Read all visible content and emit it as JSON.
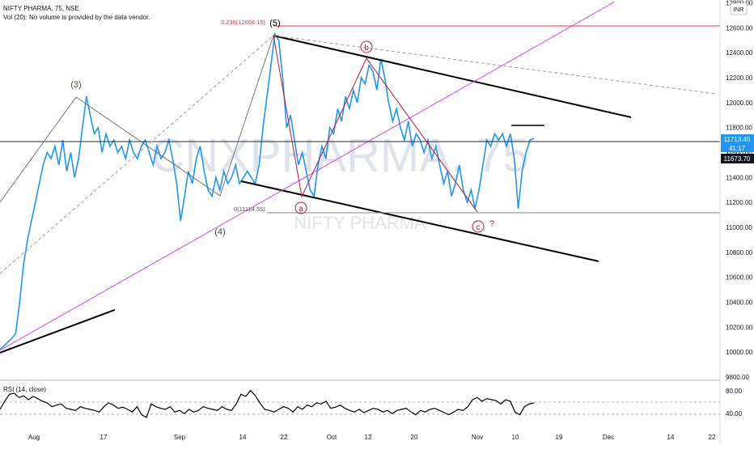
{
  "header": {
    "symbol": "NIFTY PHARMA, 75, NSE",
    "volume_note": "Vol (20): No volume is provided by the data vendor."
  },
  "watermark": {
    "big": "CNXPHARMA, 75",
    "small": "NIFTY PHARMA"
  },
  "currency": "INR",
  "price_tags": {
    "current": "11713.45",
    "countdown": "41:17",
    "secondary": "11673.70",
    "partial": "11"
  },
  "fib_labels": {
    "upper": "0.236(12608.15)",
    "lower": "0(11114.55)"
  },
  "wave_labels": {
    "w3": "(3)",
    "w4": "(4)",
    "w5": "(5)",
    "a": "a",
    "b": "b",
    "c": "c",
    "question": "?"
  },
  "rsi": {
    "label": "RSI (14, close)",
    "ticks": [
      "80.00",
      "40.00"
    ]
  },
  "colors": {
    "price": "#2196F3",
    "trendline": "#000000",
    "fib": "#F23645",
    "magenta": "#E040FB",
    "abc": "#B71C3C",
    "label_green": "#2E5E1E"
  },
  "chart_data": [
    {
      "type": "line",
      "title": "NIFTY PHARMA, 75, NSE",
      "y_unit": "INR",
      "ylim": [
        9800,
        12800
      ],
      "y_ticks": [
        "9800.00",
        "10000.00",
        "10200.00",
        "10400.00",
        "10600.00",
        "10800.00",
        "11000.00",
        "11200.00",
        "11400.00",
        "11600.00",
        "11800.00",
        "12000.00",
        "12200.00",
        "12400.00",
        "12600.00",
        "12800.00"
      ],
      "x_ticks": [
        "Aug",
        "17",
        "Sep",
        "14",
        "22",
        "Oct",
        "12",
        "20",
        "Nov",
        "10",
        "19",
        "Dec",
        "14",
        "22"
      ],
      "series": [
        {
          "values": [
            10020,
            10050,
            10080,
            10110,
            10150,
            10400,
            10700,
            10900,
            11050,
            11200,
            11350,
            11500,
            11600,
            11550,
            11650,
            11500,
            11700,
            11450,
            11600,
            11400,
            11550,
            11800,
            12050,
            11900,
            11750,
            11800,
            11600,
            11750,
            11650,
            11700,
            11600,
            11650,
            11550,
            11700,
            11600,
            11550,
            11650,
            11700,
            11600,
            11500,
            11650,
            11550,
            11600,
            11700,
            11550,
            11350,
            11050,
            11250,
            11450,
            11350,
            11550,
            11650,
            11450,
            11300,
            11250,
            11400,
            11300,
            11450,
            11350,
            11400,
            11500,
            11350,
            11400,
            11450,
            11400,
            11350,
            11500,
            11800,
            12050,
            12300,
            12550,
            12500,
            12200,
            11800,
            11900,
            11700,
            11500,
            11600,
            11450,
            11300,
            11250,
            11500,
            11650,
            11550,
            11800,
            11750,
            11950,
            11850,
            12050,
            11950,
            12100,
            12000,
            12200,
            12150,
            12300,
            12250,
            12100,
            12350,
            12200,
            12000,
            11850,
            11950,
            11800,
            11700,
            11850,
            11650,
            11750,
            11700,
            11600,
            11700,
            11550,
            11650,
            11500,
            11350,
            11450,
            11250,
            11350,
            11500,
            11300,
            11200,
            11300,
            11150,
            11300,
            11500,
            11700,
            11650,
            11750,
            11700,
            11750,
            11650,
            11750,
            11550,
            11150,
            11450,
            11600,
            11700,
            11713.45
          ]
        }
      ],
      "fib_levels": [
        {
          "label": "0.236(12608.15)",
          "value": 12608.15
        },
        {
          "label": "0(11114.55)",
          "value": 11114.55
        }
      ],
      "annotations": [
        "(3)",
        "(4)",
        "(5)",
        "a",
        "b",
        "c",
        "?"
      ]
    },
    {
      "type": "line",
      "title": "RSI (14, close)",
      "ylim": [
        20,
        95
      ],
      "levels": [
        80,
        40
      ],
      "series": [
        {
          "values": [
            50,
            65,
            78,
            80,
            72,
            75,
            68,
            74,
            70,
            65,
            62,
            55,
            58,
            60,
            52,
            50,
            48,
            55,
            52,
            50,
            48,
            45,
            55,
            62,
            58,
            52,
            54,
            50,
            45,
            55,
            40,
            35,
            60,
            55,
            52,
            50,
            55,
            45,
            48,
            42,
            50,
            45,
            48,
            55,
            52,
            50,
            48,
            55,
            50,
            48,
            60,
            78,
            74,
            85,
            76,
            62,
            50,
            48,
            45,
            50,
            55,
            52,
            45,
            55,
            50,
            58,
            55,
            62,
            60,
            65,
            52,
            54,
            58,
            52,
            48,
            45,
            50,
            44,
            48,
            52,
            50,
            45,
            48,
            42,
            48,
            50,
            52,
            45,
            40,
            48,
            45,
            50,
            52,
            48,
            44,
            40,
            45,
            50,
            48,
            55,
            68,
            72,
            65,
            70,
            68,
            66,
            60,
            68,
            65,
            45,
            40,
            55,
            60,
            62
          ]
        }
      ]
    }
  ]
}
